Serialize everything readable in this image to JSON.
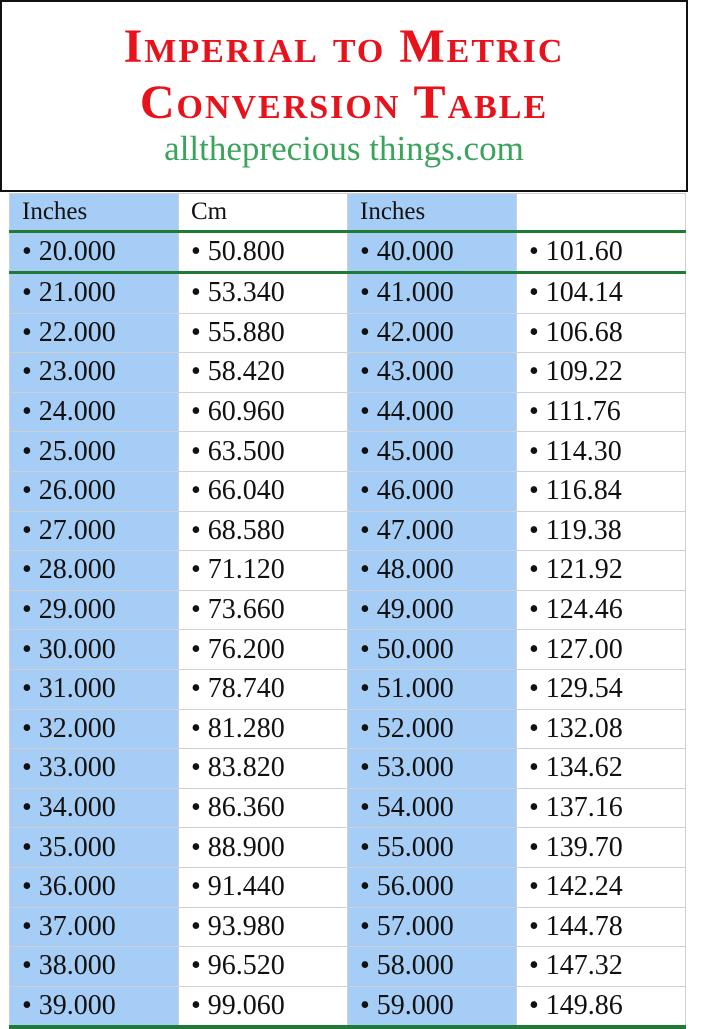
{
  "title": {
    "line1": "Imperial to Metric",
    "line2": "Conversion Table",
    "site": "alltheprecious things.com"
  },
  "colors": {
    "title": "#e8121c",
    "site": "#3aa35c",
    "inch_column_bg": "#a6cdf5",
    "rule": "#1e7a35"
  },
  "table": {
    "headers": [
      "Inches",
      "Cm",
      "Inches",
      ""
    ],
    "rows": [
      [
        "• 20.000",
        "• 50.800",
        "• 40.000",
        "• 101.60"
      ],
      [
        "• 21.000",
        "• 53.340",
        "• 41.000",
        "• 104.14"
      ],
      [
        "• 22.000",
        "• 55.880",
        "• 42.000",
        "• 106.68"
      ],
      [
        "• 23.000",
        "• 58.420",
        "• 43.000",
        "• 109.22"
      ],
      [
        "• 24.000",
        "• 60.960",
        "• 44.000",
        "• 111.76"
      ],
      [
        "• 25.000",
        "• 63.500",
        "• 45.000",
        "• 114.30"
      ],
      [
        "• 26.000",
        "• 66.040",
        "• 46.000",
        "• 116.84"
      ],
      [
        "• 27.000",
        "• 68.580",
        "• 47.000",
        "• 119.38"
      ],
      [
        "• 28.000",
        "• 71.120",
        "• 48.000",
        "• 121.92"
      ],
      [
        "• 29.000",
        "• 73.660",
        "• 49.000",
        "• 124.46"
      ],
      [
        "• 30.000",
        "• 76.200",
        "• 50.000",
        "• 127.00"
      ],
      [
        "• 31.000",
        "• 78.740",
        "• 51.000",
        "• 129.54"
      ],
      [
        "• 32.000",
        "• 81.280",
        "• 52.000",
        "• 132.08"
      ],
      [
        "• 33.000",
        "• 83.820",
        "• 53.000",
        "• 134.62"
      ],
      [
        "• 34.000",
        "• 86.360",
        "• 54.000",
        "• 137.16"
      ],
      [
        "• 35.000",
        "• 88.900",
        "• 55.000",
        "• 139.70"
      ],
      [
        "• 36.000",
        "• 91.440",
        "• 56.000",
        "• 142.24"
      ],
      [
        "• 37.000",
        "• 93.980",
        "• 57.000",
        "• 144.78"
      ],
      [
        "• 38.000",
        "• 96.520",
        "• 58.000",
        "• 147.32"
      ],
      [
        "• 39.000",
        "• 99.060",
        "• 59.000",
        "• 149.86"
      ]
    ]
  }
}
